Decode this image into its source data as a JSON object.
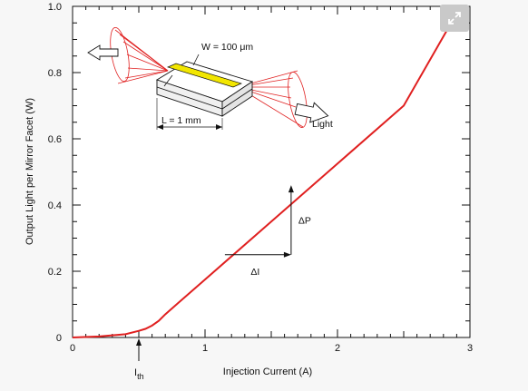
{
  "colors": {
    "curve": "#e02020",
    "accent": "#f2e600",
    "axis": "#111111",
    "background": "#f7f7f7",
    "plot_bg": "#ffffff"
  },
  "icons": {
    "expand": "expand-icon"
  },
  "chart_data": {
    "type": "line",
    "title": "",
    "xlabel": "Injection Current (A)",
    "ylabel": "Output Light per Mirror Facet (W)",
    "xlim": [
      0,
      3
    ],
    "ylim": [
      0,
      1.0
    ],
    "x_ticks": [
      "0",
      "1",
      "2",
      "3"
    ],
    "y_ticks": [
      "0",
      "0.2",
      "0.4",
      "0.6",
      "0.8",
      "1.0"
    ],
    "grid": false,
    "series": [
      {
        "x": [
          0,
          0.2,
          0.4,
          0.5,
          0.55,
          0.6,
          0.65,
          0.7,
          0.8,
          1.0,
          1.5,
          2.0,
          2.5,
          2.93
        ],
        "y": [
          0,
          0.003,
          0.01,
          0.02,
          0.026,
          0.036,
          0.05,
          0.07,
          0.105,
          0.175,
          0.35,
          0.525,
          0.7,
          1.0
        ]
      }
    ],
    "annotations": {
      "threshold_label": "I",
      "threshold_sub": "th",
      "threshold_x": 0.5,
      "delta_i": "ΔI",
      "delta_p": "ΔP",
      "delta_i_x": [
        1.15,
        1.65
      ],
      "delta_i_y": 0.25,
      "delta_p_y": [
        0.25,
        0.46
      ],
      "inset_width": "W = 100 μm",
      "inset_length": "L = 1 mm",
      "inset_light": "Light"
    }
  }
}
